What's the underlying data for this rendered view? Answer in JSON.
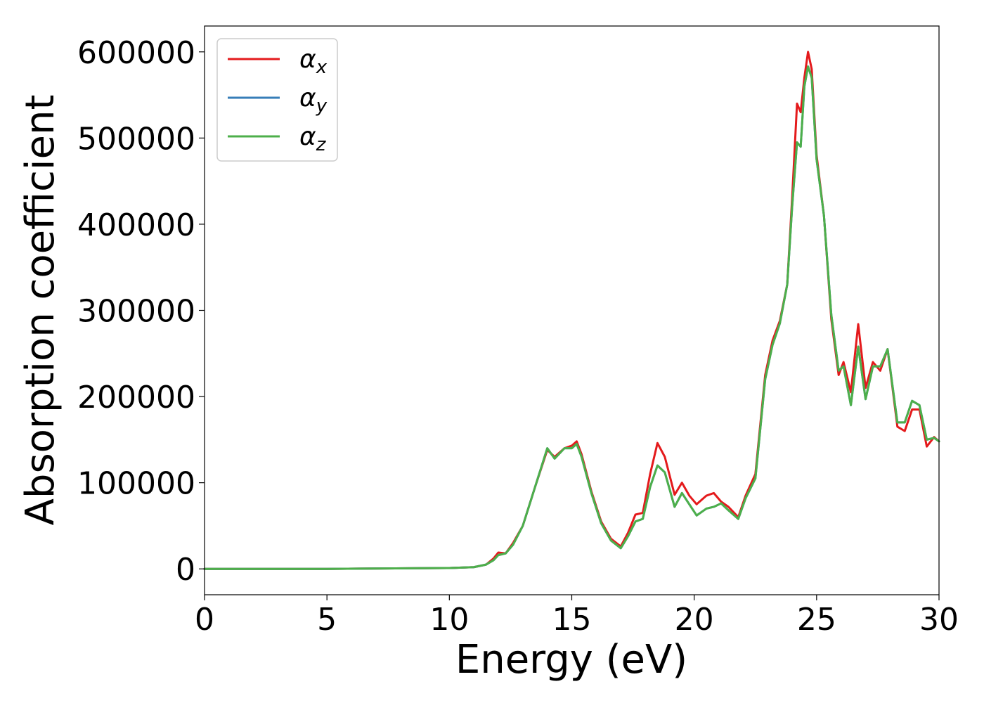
{
  "chart_data": {
    "type": "line",
    "xlabel": "Energy (eV)",
    "ylabel": "Absorption coefficient",
    "xlim": [
      0,
      30
    ],
    "ylim": [
      -30000,
      630000
    ],
    "xticks": [
      0,
      5,
      10,
      15,
      20,
      25,
      30
    ],
    "xtick_labels": [
      "0",
      "5",
      "10",
      "15",
      "20",
      "25",
      "30"
    ],
    "yticks": [
      0,
      100000,
      200000,
      300000,
      400000,
      500000,
      600000
    ],
    "ytick_labels": [
      "0",
      "100000",
      "200000",
      "300000",
      "400000",
      "500000",
      "600000"
    ],
    "grid": false,
    "legend_position": "top-left",
    "series": [
      {
        "name": "α",
        "subscript": "x",
        "color": "#e41a1c",
        "x": [
          0,
          5,
          10,
          11,
          11.5,
          11.8,
          12.0,
          12.3,
          12.6,
          13.0,
          13.5,
          14.0,
          14.3,
          14.7,
          15.0,
          15.2,
          15.4,
          15.8,
          16.2,
          16.6,
          17.0,
          17.3,
          17.6,
          17.9,
          18.2,
          18.5,
          18.8,
          19.2,
          19.5,
          19.8,
          20.1,
          20.5,
          20.8,
          21.1,
          21.4,
          21.8,
          22.1,
          22.5,
          22.9,
          23.2,
          23.5,
          23.8,
          24.0,
          24.2,
          24.35,
          24.5,
          24.65,
          24.8,
          25.0,
          25.3,
          25.6,
          25.9,
          26.1,
          26.4,
          26.7,
          27.0,
          27.3,
          27.6,
          27.9,
          28.3,
          28.6,
          28.9,
          29.2,
          29.5,
          29.8,
          30.0
        ],
        "y": [
          0,
          0,
          1000,
          2000,
          5000,
          12000,
          19000,
          18000,
          30000,
          50000,
          95000,
          138000,
          130000,
          140000,
          143000,
          148000,
          133000,
          90000,
          55000,
          35000,
          26000,
          42000,
          63000,
          65000,
          110000,
          146000,
          130000,
          86000,
          100000,
          85000,
          75000,
          85000,
          88000,
          78000,
          72000,
          60000,
          85000,
          110000,
          225000,
          265000,
          288000,
          330000,
          430000,
          540000,
          530000,
          570000,
          600000,
          580000,
          480000,
          410000,
          290000,
          225000,
          240000,
          205000,
          284000,
          210000,
          240000,
          230000,
          255000,
          165000,
          160000,
          185000,
          185000,
          142000,
          153000,
          148000
        ]
      },
      {
        "name": "α",
        "subscript": "y",
        "color": "#377eb8",
        "x": [
          0,
          5,
          10,
          11,
          11.5,
          11.8,
          12.0,
          12.3,
          12.6,
          13.0,
          13.5,
          14.0,
          14.3,
          14.7,
          15.0,
          15.2,
          15.4,
          15.8,
          16.2,
          16.6,
          17.0,
          17.3,
          17.6,
          17.9,
          18.2,
          18.5,
          18.8,
          19.2,
          19.5,
          19.8,
          20.1,
          20.5,
          20.8,
          21.1,
          21.4,
          21.8,
          22.1,
          22.5,
          22.9,
          23.2,
          23.5,
          23.8,
          24.0,
          24.2,
          24.35,
          24.5,
          24.65,
          24.8,
          25.0,
          25.3,
          25.6,
          25.9,
          26.1,
          26.4,
          26.7,
          27.0,
          27.3,
          27.6,
          27.9,
          28.3,
          28.6,
          28.9,
          29.2,
          29.5,
          29.8,
          30.0
        ],
        "y": [
          0,
          0,
          1000,
          2000,
          5000,
          10000,
          16000,
          18000,
          28000,
          50000,
          95000,
          140000,
          128000,
          140000,
          140000,
          145000,
          130000,
          88000,
          53000,
          33000,
          24000,
          38000,
          55000,
          58000,
          95000,
          120000,
          112000,
          72000,
          88000,
          75000,
          62000,
          70000,
          72000,
          76000,
          68000,
          58000,
          82000,
          105000,
          220000,
          260000,
          285000,
          330000,
          420000,
          495000,
          490000,
          560000,
          583000,
          570000,
          475000,
          410000,
          295000,
          230000,
          235000,
          190000,
          258000,
          197000,
          235000,
          235000,
          255000,
          170000,
          170000,
          195000,
          190000,
          150000,
          152000,
          148000
        ]
      },
      {
        "name": "α",
        "subscript": "z",
        "color": "#4daf4a",
        "x": [
          0,
          5,
          10,
          11,
          11.5,
          11.8,
          12.0,
          12.3,
          12.6,
          13.0,
          13.5,
          14.0,
          14.3,
          14.7,
          15.0,
          15.2,
          15.4,
          15.8,
          16.2,
          16.6,
          17.0,
          17.3,
          17.6,
          17.9,
          18.2,
          18.5,
          18.8,
          19.2,
          19.5,
          19.8,
          20.1,
          20.5,
          20.8,
          21.1,
          21.4,
          21.8,
          22.1,
          22.5,
          22.9,
          23.2,
          23.5,
          23.8,
          24.0,
          24.2,
          24.35,
          24.5,
          24.65,
          24.8,
          25.0,
          25.3,
          25.6,
          25.9,
          26.1,
          26.4,
          26.7,
          27.0,
          27.3,
          27.6,
          27.9,
          28.3,
          28.6,
          28.9,
          29.2,
          29.5,
          29.8,
          30.0
        ],
        "y": [
          0,
          0,
          1000,
          2000,
          5000,
          10000,
          16000,
          18000,
          28000,
          50000,
          95000,
          140000,
          128000,
          140000,
          140000,
          145000,
          130000,
          88000,
          53000,
          33000,
          24000,
          38000,
          55000,
          58000,
          95000,
          120000,
          112000,
          72000,
          88000,
          75000,
          62000,
          70000,
          72000,
          76000,
          68000,
          58000,
          82000,
          105000,
          220000,
          260000,
          285000,
          330000,
          420000,
          495000,
          490000,
          560000,
          583000,
          570000,
          475000,
          410000,
          295000,
          230000,
          235000,
          190000,
          258000,
          197000,
          235000,
          235000,
          255000,
          170000,
          170000,
          195000,
          190000,
          150000,
          152000,
          148000
        ]
      }
    ]
  }
}
